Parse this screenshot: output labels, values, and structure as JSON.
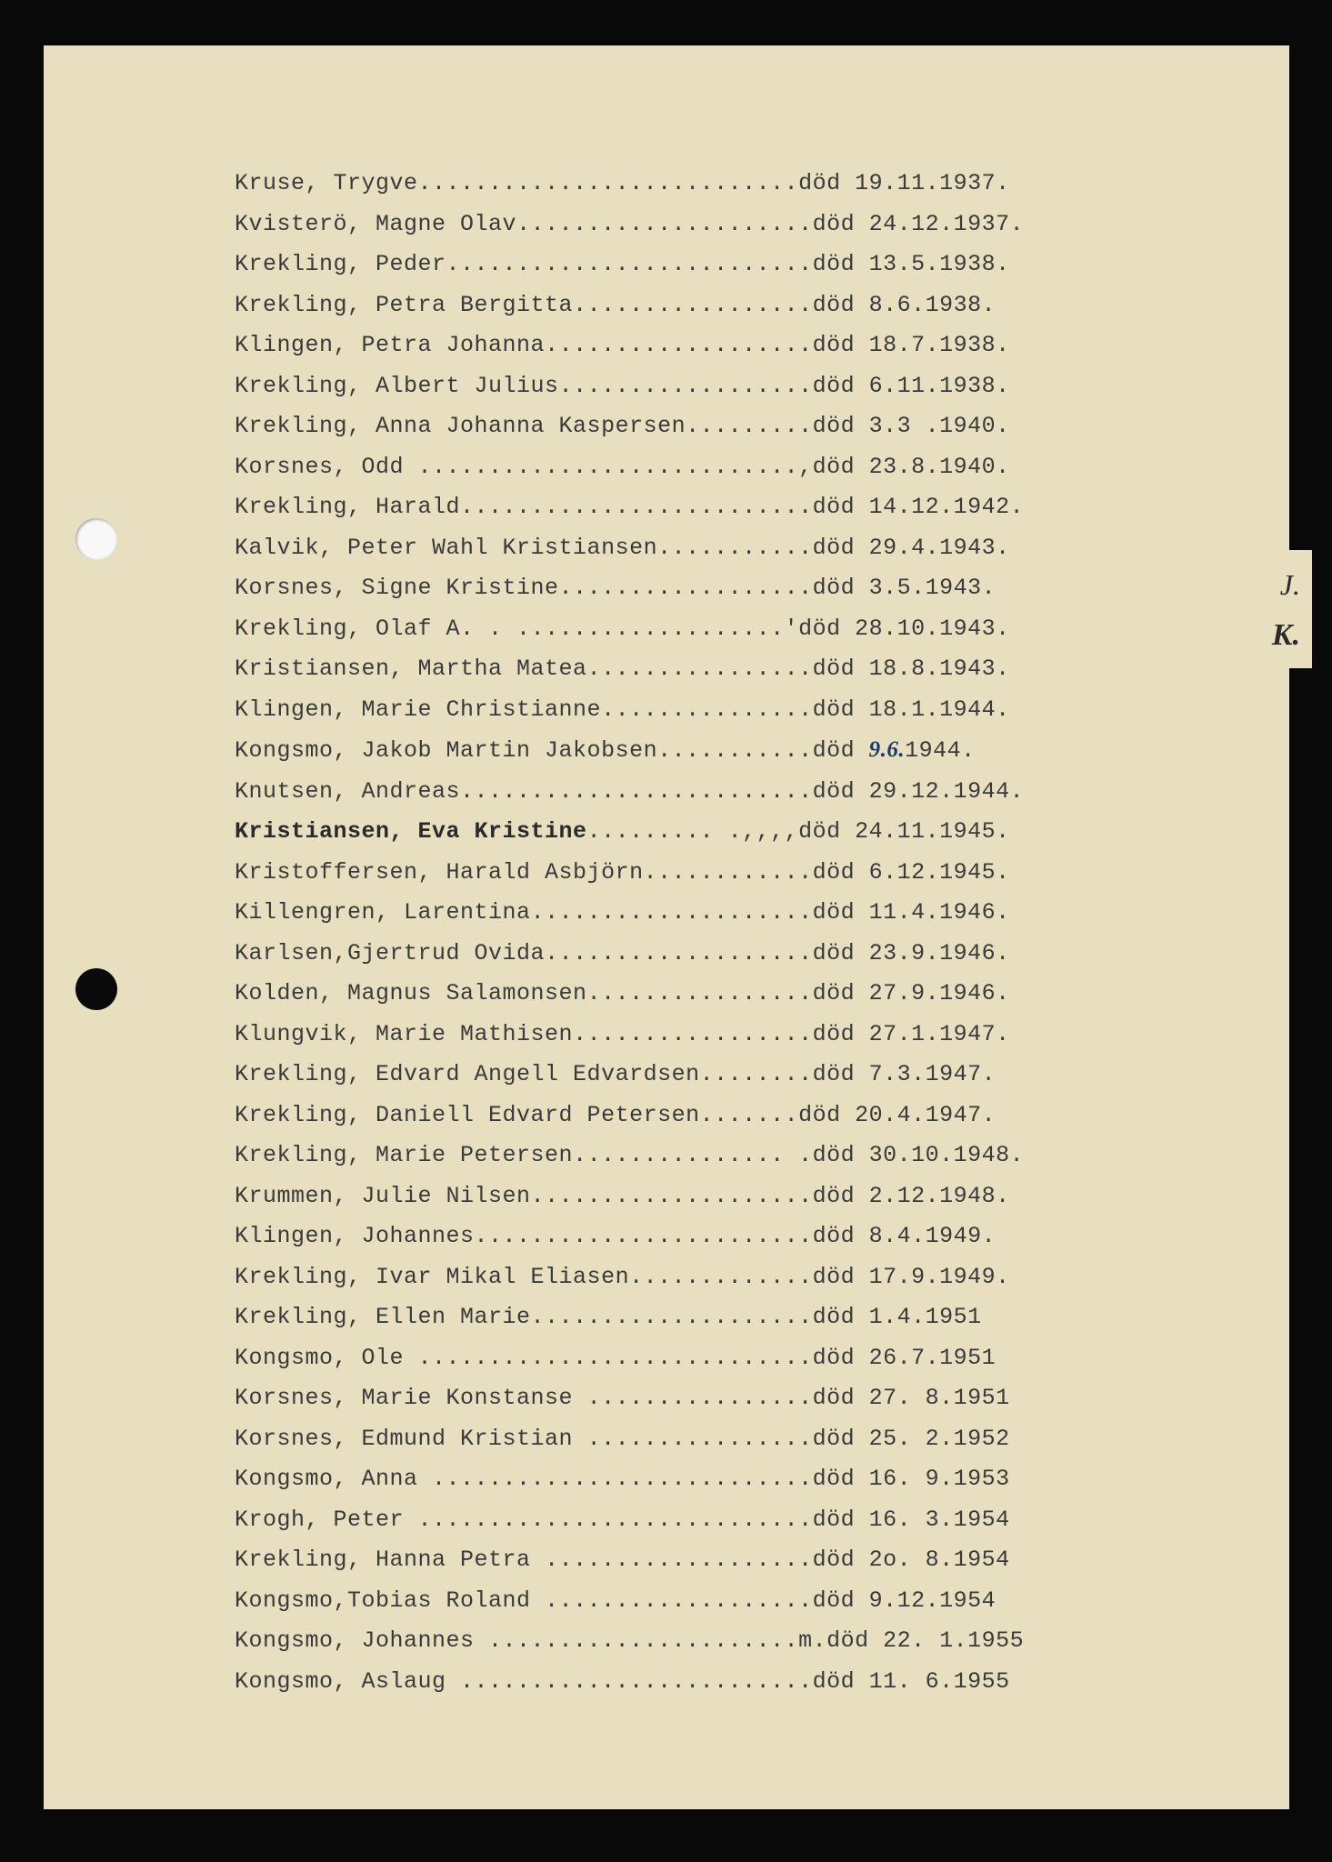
{
  "page": {
    "background_color": "#e8dfc0",
    "frame_color": "#0a0a0a",
    "text_color": "#3a3a3a",
    "font_family": "Courier New",
    "font_size": 25,
    "line_height": 44.5
  },
  "tab": {
    "label_j": "J.",
    "label_k": "K."
  },
  "entries": [
    {
      "name": "Kruse, Trygve",
      "dots": "...........................",
      "status": "död",
      "date": "19.11.1937."
    },
    {
      "name": "Kvisterö, Magne Olav",
      "dots": ".....................",
      "status": "död",
      "date": "24.12.1937."
    },
    {
      "name": "Krekling, Peder",
      "dots": "..........................",
      "status": "död",
      "date": "13.5.1938."
    },
    {
      "name": "Krekling, Petra Bergitta",
      "dots": ".................",
      "status": "död",
      "date": " 8.6.1938."
    },
    {
      "name": "Klingen, Petra Johanna",
      "dots": "...................",
      "status": "död",
      "date": "18.7.1938."
    },
    {
      "name": "Krekling, Albert Julius",
      "dots": "..................",
      "status": "död",
      "date": "6.11.1938."
    },
    {
      "name": "Krekling, Anna Johanna Kaspersen",
      "dots": ".........",
      "status": "död",
      "date": " 3.3 .1940."
    },
    {
      "name": "Korsnes, Odd ",
      "dots": "...........................,",
      "status": "död",
      "date": "23.8.1940."
    },
    {
      "name": "Krekling, Harald",
      "dots": ".........................",
      "status": "död",
      "date": "14.12.1942."
    },
    {
      "name": "Kalvik, Peter Wahl Kristiansen",
      "dots": "...........",
      "status": "död",
      "date": "29.4.1943."
    },
    {
      "name": "Korsnes, Signe Kristine",
      "dots": "..................",
      "status": "död",
      "date": " 3.5.1943."
    },
    {
      "name": "Krekling, Olaf A. .  .",
      "dots": "..................'",
      "status": "död",
      "date": "28.10.1943."
    },
    {
      "name": "Kristiansen, Martha Matea",
      "dots": "................",
      "status": "död",
      "date": "18.8.1943."
    },
    {
      "name": "Klingen, Marie Christianne",
      "dots": "...............",
      "status": "död",
      "date": "18.1.1944."
    },
    {
      "name": "Kongsmo, Jakob Martin Jakobsen",
      "dots": "...........",
      "status": "död",
      "date_prefix": "",
      "handwritten": "9.6.",
      "date_suffix": "1944."
    },
    {
      "name": "Knutsen, Andreas",
      "dots": ".........................",
      "status": "död",
      "date": "29.12.1944."
    },
    {
      "name_bold": "Kristiansen, Eva Kristine",
      "dots": ".........  .,,,,",
      "status": "död",
      "date": "24.11.1945."
    },
    {
      "name": "Kristoffersen, Harald Asbjörn",
      "dots": "............",
      "status": "död",
      "date": " 6.12.1945."
    },
    {
      "name": "Killengren, Larentina",
      "dots": "....................",
      "status": "död",
      "date": "11.4.1946."
    },
    {
      "name": "Karlsen,Gjertrud Ovida",
      "dots": "...................",
      "status": "död",
      "date": "23.9.1946."
    },
    {
      "name": "Kolden, Magnus Salamonsen",
      "dots": "................",
      "status": "död",
      "date": "27.9.1946."
    },
    {
      "name": "Klungvik, Marie Mathisen",
      "dots": ".................",
      "status": "död",
      "date": "27.1.1947."
    },
    {
      "name": "Krekling, Edvard Angell Edvardsen",
      "dots": "........",
      "status": "död",
      "date": " 7.3.1947."
    },
    {
      "name": "Krekling, Daniell Edvard  Petersen",
      "dots": ".......",
      "status": "död",
      "date": "20.4.1947."
    },
    {
      "name": "Krekling, Marie Petersen",
      "dots": "............... .",
      "status": "död",
      "date": "30.10.1948."
    },
    {
      "name": "Krummen, Julie Nilsen",
      "dots": "....................",
      "status": "död",
      "date": "  2.12.1948."
    },
    {
      "name": "Klingen, Johannes",
      "dots": "........................",
      "status": "död",
      "date": " 8.4.1949."
    },
    {
      "name": "Krekling, Ivar Mikal Eliasen",
      "dots": ".............",
      "status": "död",
      "date": "17.9.1949."
    },
    {
      "name": "Krekling, Ellen Marie",
      "dots": "....................",
      "status": "död",
      "date": " 1.4.1951"
    },
    {
      "name": "Kongsmo, Ole ",
      "dots": "............................",
      "status": "död",
      "date": " 26.7.1951"
    },
    {
      "name": "Korsnes, Marie Konstanse ",
      "dots": "................",
      "status": "död",
      "date": "27. 8.1951"
    },
    {
      "name": "Korsnes, Edmund Kristian ",
      "dots": "................",
      "status": "död",
      "date": "25. 2.1952"
    },
    {
      "name": "Kongsmo, Anna ",
      "dots": "...........................",
      "status": "död",
      "date": "16. 9.1953"
    },
    {
      "name": "Krogh, Peter ",
      "dots": "............................",
      "status": "död",
      "date": "16. 3.1954"
    },
    {
      "name": "Krekling, Hanna Petra ",
      "dots": "...................",
      "status": "död",
      "date": "2o. 8.1954"
    },
    {
      "name": "Kongsmo,Tobias Roland ",
      "dots": "...................",
      "status": "död",
      "date": " 9.12.1954"
    },
    {
      "name": "Kongsmo, Johannes ",
      "dots": "......................m.",
      "status": "död",
      "date": "22. 1.1955"
    },
    {
      "name": "Kongsmo, Aslaug ",
      "dots": ".........................",
      "status": "död",
      "date": "11. 6.1955"
    }
  ]
}
